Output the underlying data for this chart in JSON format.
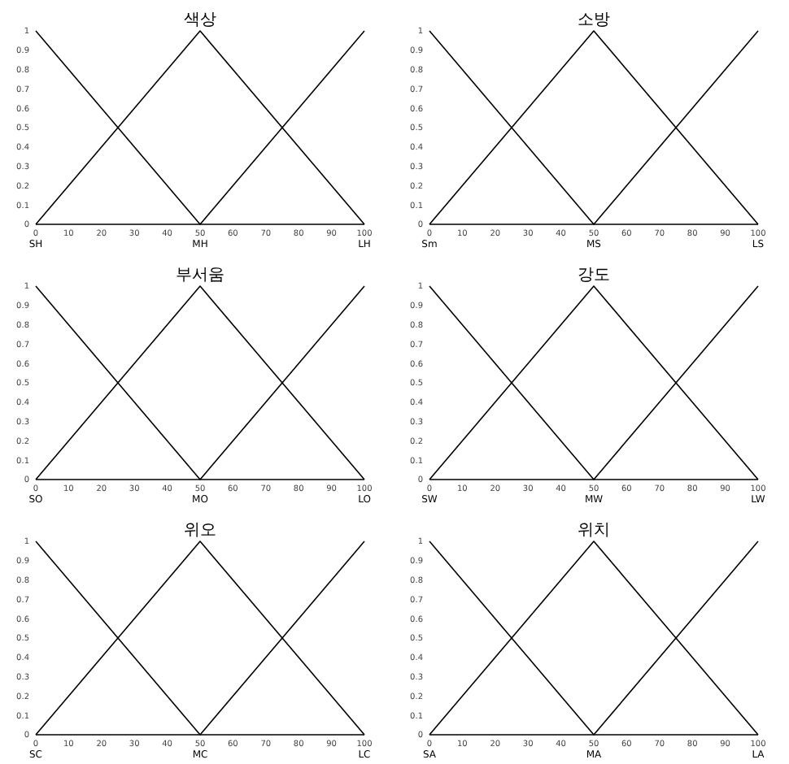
{
  "chart_data": [
    {
      "type": "line",
      "title": "색상",
      "xlim": [
        0,
        100
      ],
      "ylim": [
        0,
        1
      ],
      "xticks": [
        0,
        10,
        20,
        30,
        40,
        50,
        60,
        70,
        80,
        90,
        100
      ],
      "yticks": [
        0,
        0.1,
        0.2,
        0.3,
        0.4,
        0.5,
        0.6,
        0.7,
        0.8,
        0.9,
        1
      ],
      "grid": false,
      "legend": false,
      "marker": "none",
      "line_style": "solid",
      "annotations": [
        {
          "text": "SH",
          "x": 0,
          "y": 0
        },
        {
          "text": "MH",
          "x": 50,
          "y": 0
        },
        {
          "text": "LH",
          "x": 100,
          "y": 0
        }
      ],
      "series": [
        {
          "color": "#000000",
          "x": [
            0,
            50,
            100
          ],
          "values": [
            1,
            0,
            0
          ]
        },
        {
          "color": "#000000",
          "x": [
            0,
            50,
            100
          ],
          "values": [
            0,
            1,
            0
          ]
        },
        {
          "color": "#000000",
          "x": [
            0,
            50,
            100
          ],
          "values": [
            0,
            0,
            1
          ]
        }
      ]
    },
    {
      "type": "line",
      "title": "소방",
      "xlim": [
        0,
        100
      ],
      "ylim": [
        0,
        1
      ],
      "xticks": [
        0,
        10,
        20,
        30,
        40,
        50,
        60,
        70,
        80,
        90,
        100
      ],
      "yticks": [
        0,
        0.1,
        0.2,
        0.3,
        0.4,
        0.5,
        0.6,
        0.7,
        0.8,
        0.9,
        1
      ],
      "grid": false,
      "legend": false,
      "marker": "none",
      "line_style": "solid",
      "annotations": [
        {
          "text": "Sm",
          "x": 0,
          "y": 0
        },
        {
          "text": "MS",
          "x": 50,
          "y": 0
        },
        {
          "text": "LS",
          "x": 100,
          "y": 0
        }
      ],
      "series": [
        {
          "color": "#000000",
          "x": [
            0,
            50,
            100
          ],
          "values": [
            1,
            0,
            0
          ]
        },
        {
          "color": "#000000",
          "x": [
            0,
            50,
            100
          ],
          "values": [
            0,
            1,
            0
          ]
        },
        {
          "color": "#000000",
          "x": [
            0,
            50,
            100
          ],
          "values": [
            0,
            0,
            1
          ]
        }
      ]
    },
    {
      "type": "line",
      "title": "부서움",
      "xlim": [
        0,
        100
      ],
      "ylim": [
        0,
        1
      ],
      "xticks": [
        0,
        10,
        20,
        30,
        40,
        50,
        60,
        70,
        80,
        90,
        100
      ],
      "yticks": [
        0,
        0.1,
        0.2,
        0.3,
        0.4,
        0.5,
        0.6,
        0.7,
        0.8,
        0.9,
        1
      ],
      "grid": false,
      "legend": false,
      "marker": "none",
      "line_style": "solid",
      "annotations": [
        {
          "text": "SO",
          "x": 0,
          "y": 0
        },
        {
          "text": "MO",
          "x": 50,
          "y": 0
        },
        {
          "text": "LO",
          "x": 100,
          "y": 0
        }
      ],
      "series": [
        {
          "color": "#000000",
          "x": [
            0,
            50,
            100
          ],
          "values": [
            1,
            0,
            0
          ]
        },
        {
          "color": "#000000",
          "x": [
            0,
            50,
            100
          ],
          "values": [
            0,
            1,
            0
          ]
        },
        {
          "color": "#000000",
          "x": [
            0,
            50,
            100
          ],
          "values": [
            0,
            0,
            1
          ]
        }
      ]
    },
    {
      "type": "line",
      "title": "강도",
      "xlim": [
        0,
        100
      ],
      "ylim": [
        0,
        1
      ],
      "xticks": [
        0,
        10,
        20,
        30,
        40,
        50,
        60,
        70,
        80,
        90,
        100
      ],
      "yticks": [
        0,
        0.1,
        0.2,
        0.3,
        0.4,
        0.5,
        0.6,
        0.7,
        0.8,
        0.9,
        1
      ],
      "grid": false,
      "legend": false,
      "marker": "none",
      "line_style": "solid",
      "annotations": [
        {
          "text": "SW",
          "x": 0,
          "y": 0
        },
        {
          "text": "MW",
          "x": 50,
          "y": 0
        },
        {
          "text": "LW",
          "x": 100,
          "y": 0
        }
      ],
      "series": [
        {
          "color": "#000000",
          "x": [
            0,
            50,
            100
          ],
          "values": [
            1,
            0,
            0
          ]
        },
        {
          "color": "#000000",
          "x": [
            0,
            50,
            100
          ],
          "values": [
            0,
            1,
            0
          ]
        },
        {
          "color": "#000000",
          "x": [
            0,
            50,
            100
          ],
          "values": [
            0,
            0,
            1
          ]
        }
      ]
    },
    {
      "type": "line",
      "title": "위오",
      "xlim": [
        0,
        100
      ],
      "ylim": [
        0,
        1
      ],
      "xticks": [
        0,
        10,
        20,
        30,
        40,
        50,
        60,
        70,
        80,
        90,
        100
      ],
      "yticks": [
        0,
        0.1,
        0.2,
        0.3,
        0.4,
        0.5,
        0.6,
        0.7,
        0.8,
        0.9,
        1
      ],
      "grid": false,
      "legend": false,
      "marker": "none",
      "line_style": "solid",
      "annotations": [
        {
          "text": "SC",
          "x": 0,
          "y": 0
        },
        {
          "text": "MC",
          "x": 50,
          "y": 0
        },
        {
          "text": "LC",
          "x": 100,
          "y": 0
        }
      ],
      "series": [
        {
          "color": "#000000",
          "x": [
            0,
            50,
            100
          ],
          "values": [
            1,
            0,
            0
          ]
        },
        {
          "color": "#000000",
          "x": [
            0,
            50,
            100
          ],
          "values": [
            0,
            1,
            0
          ]
        },
        {
          "color": "#000000",
          "x": [
            0,
            50,
            100
          ],
          "values": [
            0,
            0,
            1
          ]
        }
      ]
    },
    {
      "type": "line",
      "title": "위치",
      "xlim": [
        0,
        100
      ],
      "ylim": [
        0,
        1
      ],
      "xticks": [
        0,
        10,
        20,
        30,
        40,
        50,
        60,
        70,
        80,
        90,
        100
      ],
      "yticks": [
        0,
        0.1,
        0.2,
        0.3,
        0.4,
        0.5,
        0.6,
        0.7,
        0.8,
        0.9,
        1
      ],
      "grid": false,
      "legend": false,
      "marker": "none",
      "line_style": "solid",
      "annotations": [
        {
          "text": "SA",
          "x": 0,
          "y": 0
        },
        {
          "text": "MA",
          "x": 50,
          "y": 0
        },
        {
          "text": "LA",
          "x": 100,
          "y": 0
        }
      ],
      "series": [
        {
          "color": "#000000",
          "x": [
            0,
            50,
            100
          ],
          "values": [
            1,
            0,
            0
          ]
        },
        {
          "color": "#000000",
          "x": [
            0,
            50,
            100
          ],
          "values": [
            0,
            1,
            0
          ]
        },
        {
          "color": "#000000",
          "x": [
            0,
            50,
            100
          ],
          "values": [
            0,
            0,
            1
          ]
        }
      ]
    }
  ]
}
